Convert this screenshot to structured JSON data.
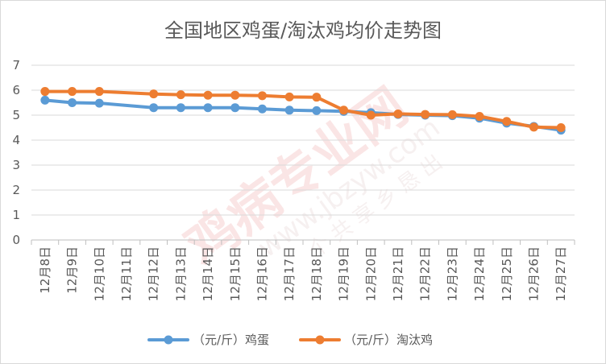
{
  "chart_data": {
    "type": "line",
    "title": "全国地区鸡蛋/淘汰鸡均价走势图",
    "xlabel": "",
    "ylabel": "",
    "ylim": [
      0,
      7
    ],
    "yticks": [
      0,
      1,
      2,
      3,
      4,
      5,
      6,
      7
    ],
    "grid": true,
    "legend_position": "bottom",
    "categories": [
      "12月8日",
      "12月9日",
      "12月10日",
      "12月11日",
      "12月12日",
      "12月13日",
      "12月14日",
      "12月15日",
      "12月16日",
      "12月17日",
      "12月18日",
      "12月19日",
      "12月20日",
      "12月21日",
      "12月22日",
      "12月23日",
      "12月24日",
      "12月25日",
      "12月26日",
      "12月27日"
    ],
    "series": [
      {
        "name": "（元/斤）鸡蛋",
        "color": "#5b9bd5",
        "values": [
          5.6,
          5.5,
          5.48,
          null,
          5.3,
          5.3,
          5.3,
          5.3,
          5.25,
          5.2,
          5.18,
          5.15,
          5.1,
          5.03,
          5.0,
          4.98,
          4.88,
          4.68,
          4.55,
          4.4
        ]
      },
      {
        "name": "（元/斤）淘汰鸡",
        "color": "#ed7d31",
        "values": [
          5.95,
          5.95,
          5.95,
          null,
          5.85,
          5.82,
          5.8,
          5.8,
          5.78,
          5.73,
          5.72,
          5.2,
          5.0,
          5.05,
          5.03,
          5.02,
          4.95,
          4.75,
          4.52,
          4.5
        ]
      }
    ]
  },
  "watermark": {
    "brand": "鸡病专业网",
    "url": "www.jbzyw.com",
    "sub": "个 共 享 乡 恳 出"
  }
}
